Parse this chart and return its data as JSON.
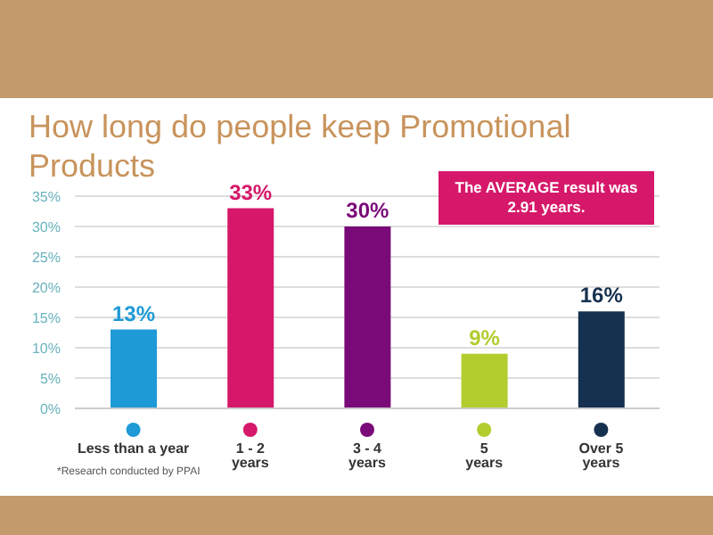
{
  "chart_data": {
    "type": "bar",
    "title": "How long do people keep Promotional Products",
    "categories": [
      "Less than a year",
      "1 - 2 years",
      "3 - 4 years",
      "5 years",
      "Over 5 years"
    ],
    "values": [
      13,
      33,
      30,
      9,
      16
    ],
    "colors": [
      "#1e9ad6",
      "#d6186a",
      "#7a0a78",
      "#b3cc2e",
      "#16304f"
    ],
    "value_labels": [
      "13%",
      "33%",
      "30%",
      "9%",
      "16%"
    ],
    "ylim": [
      0,
      35
    ],
    "yticks": [
      {
        "value": 0,
        "label": "0%"
      },
      {
        "value": 5,
        "label": "5%"
      },
      {
        "value": 10,
        "label": "10%"
      },
      {
        "value": 15,
        "label": "15%"
      },
      {
        "value": 20,
        "label": "20%"
      },
      {
        "value": 25,
        "label": "25%"
      },
      {
        "value": 30,
        "label": "30%"
      },
      {
        "value": 35,
        "label": "35%"
      }
    ],
    "grid": "y",
    "annotations": [
      "The AVERAGE result was 2.91 years.",
      "*Research conducted by PPAI"
    ]
  }
}
